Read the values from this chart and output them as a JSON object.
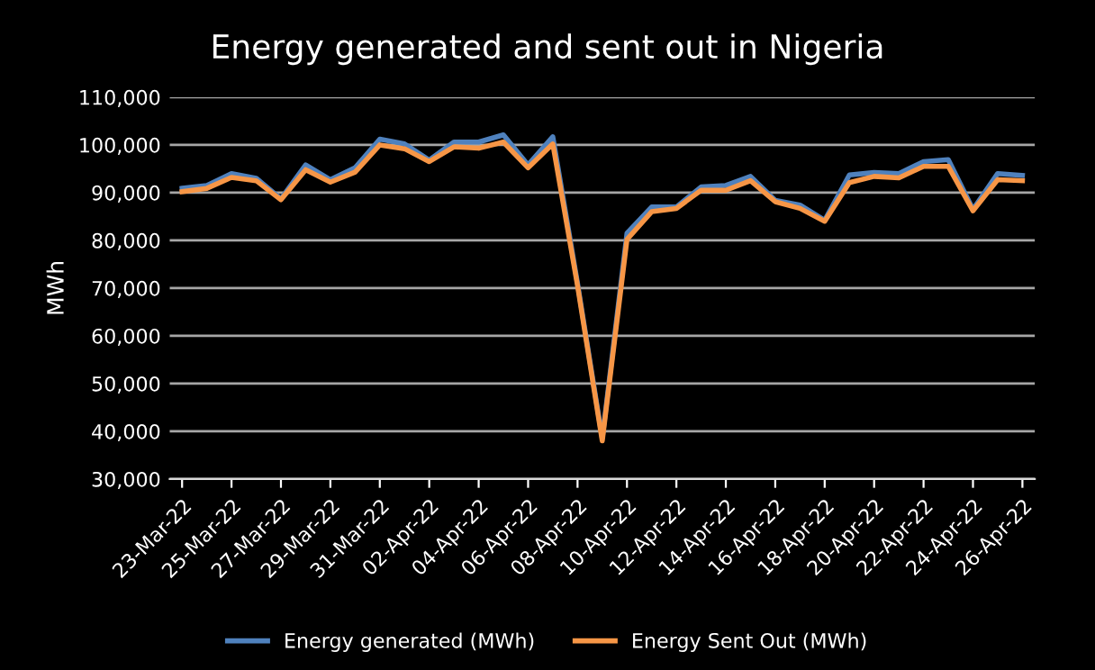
{
  "chart_data": {
    "type": "line",
    "title": "Energy generated and sent out in Nigeria",
    "ylabel": "MWh",
    "categories": [
      "23-Mar-22",
      null,
      "25-Mar-22",
      null,
      "27-Mar-22",
      null,
      "29-Mar-22",
      null,
      "31-Mar-22",
      null,
      "02-Apr-22",
      null,
      "04-Apr-22",
      null,
      "06-Apr-22",
      null,
      "08-Apr-22",
      null,
      "10-Apr-22",
      null,
      "12-Apr-22",
      null,
      "14-Apr-22",
      null,
      "16-Apr-22",
      null,
      "18-Apr-22",
      null,
      "20-Apr-22",
      null,
      "22-Apr-22",
      null,
      "24-Apr-22",
      null,
      "26-Apr-22"
    ],
    "series": [
      {
        "name": "Energy generated (MWh)",
        "color": "#4f81bd",
        "values": [
          90900,
          91500,
          94000,
          93000,
          88700,
          95800,
          92700,
          95200,
          101200,
          100200,
          96800,
          100600,
          100600,
          102100,
          95800,
          101700,
          71000,
          38500,
          81500,
          87000,
          87000,
          91200,
          91500,
          93400,
          88400,
          87400,
          84200,
          93700,
          94200,
          94000,
          96500,
          96900,
          86500,
          94000,
          93600
        ]
      },
      {
        "name": "Energy Sent Out (MWh)",
        "color": "#f79646",
        "values": [
          90200,
          90900,
          93200,
          92500,
          88500,
          94800,
          92200,
          94300,
          100000,
          99200,
          96500,
          99600,
          99300,
          100600,
          95200,
          100200,
          70500,
          38000,
          80200,
          86000,
          86700,
          90500,
          90500,
          92500,
          88100,
          86700,
          84000,
          92100,
          93400,
          93100,
          95500,
          95500,
          86200,
          92700,
          92500
        ]
      }
    ],
    "ylim": [
      30000,
      110000
    ],
    "yticks": [
      {
        "value": 30000,
        "label": "30,000"
      },
      {
        "value": 40000,
        "label": "40,000"
      },
      {
        "value": 50000,
        "label": "50,000"
      },
      {
        "value": 60000,
        "label": "60,000"
      },
      {
        "value": 70000,
        "label": "70,000"
      },
      {
        "value": 80000,
        "label": "80,000"
      },
      {
        "value": 90000,
        "label": "90,000"
      },
      {
        "value": 100000,
        "label": "100,000"
      },
      {
        "value": 110000,
        "label": "110,000"
      }
    ],
    "grid": "y",
    "legend": "bottom",
    "marker": "none",
    "line_style": "solid"
  }
}
